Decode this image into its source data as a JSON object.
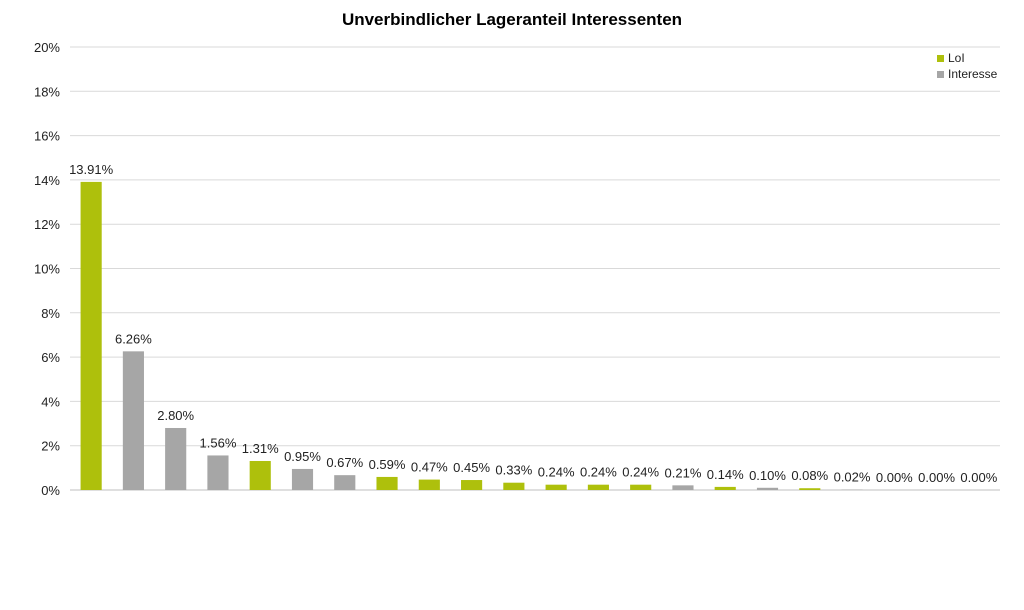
{
  "chart_data": {
    "type": "bar",
    "title": "Unverbindlicher Lageranteil Interessenten",
    "xlabel": "",
    "ylabel": "",
    "ylim": [
      0,
      20
    ],
    "yticks": [
      "0%",
      "2%",
      "4%",
      "6%",
      "8%",
      "10%",
      "12%",
      "14%",
      "16%",
      "18%",
      "20%"
    ],
    "grid": true,
    "legend_position": "top-right",
    "legend": [
      {
        "key": "lol",
        "label": "LoI",
        "color": "#aec00c"
      },
      {
        "key": "interesse",
        "label": "Interesse",
        "color": "#a6a6a6"
      }
    ],
    "values": [
      13.91,
      6.26,
      2.8,
      1.56,
      1.31,
      0.95,
      0.67,
      0.59,
      0.47,
      0.45,
      0.33,
      0.24,
      0.24,
      0.24,
      0.21,
      0.14,
      0.1,
      0.08,
      0.02,
      0.0,
      0.0,
      0.0
    ],
    "labels": [
      "13.91%",
      "6.26%",
      "2.80%",
      "1.56%",
      "1.31%",
      "0.95%",
      "0.67%",
      "0.59%",
      "0.47%",
      "0.45%",
      "0.33%",
      "0.24%",
      "0.24%",
      "0.24%",
      "0.21%",
      "0.14%",
      "0.10%",
      "0.08%",
      "0.02%",
      "0.00%",
      "0.00%",
      "0.00%"
    ],
    "series_key": [
      "lol",
      "interesse",
      "interesse",
      "interesse",
      "lol",
      "interesse",
      "interesse",
      "lol",
      "lol",
      "lol",
      "lol",
      "lol",
      "lol",
      "lol",
      "interesse",
      "lol",
      "interesse",
      "lol",
      "interesse",
      "lol",
      "lol",
      "lol"
    ]
  }
}
